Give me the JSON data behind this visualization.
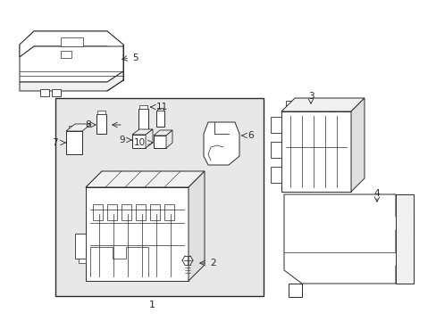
{
  "bg_color": "#ffffff",
  "line_color": "#2a2a2a",
  "box_bg": "#e8e8e8",
  "fig_width": 4.89,
  "fig_height": 3.6,
  "dpi": 100
}
